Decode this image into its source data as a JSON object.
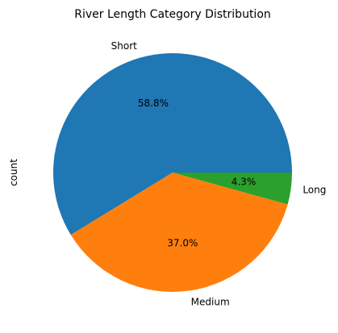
{
  "chart_data": {
    "type": "pie",
    "title": "River Length Category Distribution",
    "ylabel": "count",
    "slices": [
      {
        "label": "Short",
        "percent": 58.8,
        "percent_label": "58.8%",
        "color": "#1f77b4"
      },
      {
        "label": "Medium",
        "percent": 37.0,
        "percent_label": "37.0%",
        "color": "#ff7f0e"
      },
      {
        "label": "Long",
        "percent": 4.3,
        "percent_label": "4.3%",
        "color": "#2ca02c"
      }
    ],
    "start_angle_deg": 0,
    "direction": "counterclockwise"
  }
}
